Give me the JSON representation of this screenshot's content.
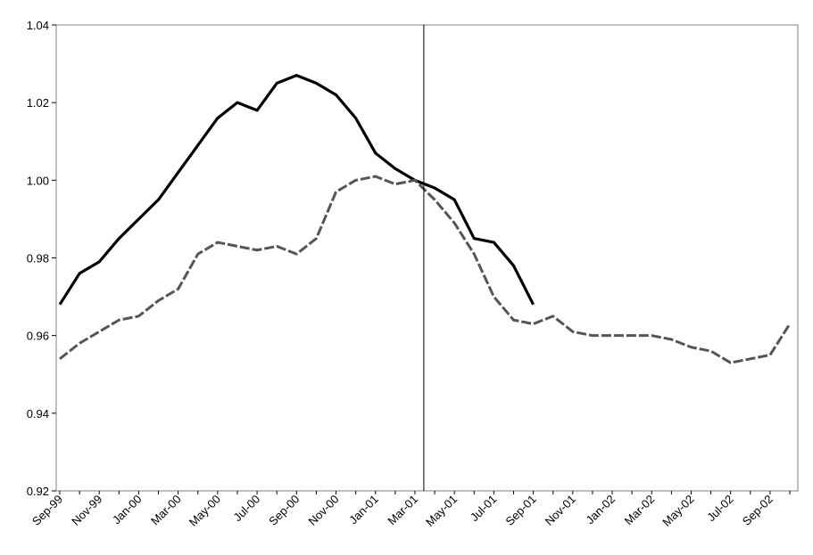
{
  "chart_data": {
    "type": "line",
    "title": "",
    "xlabel": "",
    "ylabel": "",
    "ylim": [
      0.92,
      1.04
    ],
    "y_ticks": [
      0.92,
      0.94,
      0.96,
      0.98,
      1.0,
      1.02,
      1.04
    ],
    "y_tick_labels": [
      "0.92",
      "0.94",
      "0.96",
      "0.98",
      "1.00",
      "1.02",
      "1.04"
    ],
    "x_tick_labels": [
      "Sep-99",
      "Nov-99",
      "Jan-00",
      "Mar-00",
      "May-00",
      "Jul-00",
      "Sep-00",
      "Nov-00",
      "Jan-01",
      "Mar-01",
      "May-01",
      "Jul-01",
      "Sep-01",
      "Nov-01",
      "Jan-02",
      "Mar-02",
      "May-02",
      "Jul-02",
      "Sep-02"
    ],
    "x": [
      "Sep-99",
      "Oct-99",
      "Nov-99",
      "Dec-99",
      "Jan-00",
      "Feb-00",
      "Mar-00",
      "Apr-00",
      "May-00",
      "Jun-00",
      "Jul-00",
      "Aug-00",
      "Sep-00",
      "Oct-00",
      "Nov-00",
      "Dec-00",
      "Jan-01",
      "Feb-01",
      "Mar-01",
      "Apr-01",
      "May-01",
      "Jun-01",
      "Jul-01",
      "Aug-01",
      "Sep-01",
      "Oct-01",
      "Nov-01",
      "Dec-01",
      "Jan-02",
      "Feb-02",
      "Mar-02",
      "Apr-02",
      "May-02",
      "Jun-02",
      "Jul-02",
      "Aug-02",
      "Sep-02",
      "Oct-02"
    ],
    "reference_line_x": "Mar-01",
    "grid": false,
    "legend": "none",
    "series": [
      {
        "style": "solid",
        "color": "#000000",
        "values": [
          0.968,
          0.976,
          0.979,
          0.985,
          0.99,
          0.995,
          1.002,
          1.009,
          1.016,
          1.02,
          1.018,
          1.025,
          1.027,
          1.025,
          1.022,
          1.016,
          1.007,
          1.003,
          1.0,
          0.998,
          0.995,
          0.985,
          0.984,
          0.978,
          0.968,
          null,
          null,
          null,
          null,
          null,
          null,
          null,
          null,
          null,
          null,
          null,
          null,
          null
        ]
      },
      {
        "style": "dashed",
        "color": "#555555",
        "values": [
          0.954,
          0.958,
          0.961,
          0.964,
          0.965,
          0.969,
          0.972,
          0.981,
          0.984,
          0.983,
          0.982,
          0.983,
          0.981,
          0.985,
          0.997,
          1.0,
          1.001,
          0.999,
          1.0,
          0.995,
          0.989,
          0.981,
          0.97,
          0.964,
          0.963,
          0.965,
          0.961,
          0.96,
          0.96,
          0.96,
          0.96,
          0.959,
          0.957,
          0.956,
          0.953,
          0.954,
          0.955,
          0.963
        ]
      }
    ]
  }
}
